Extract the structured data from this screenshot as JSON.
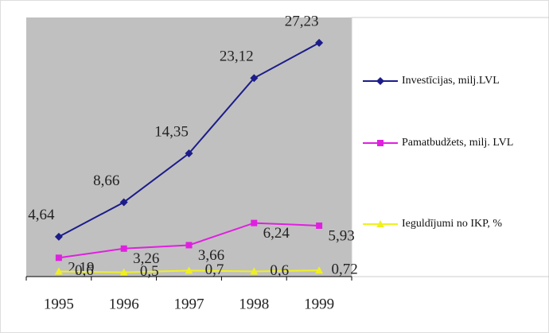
{
  "chart_data": {
    "type": "line",
    "categories": [
      "1995",
      "1996",
      "1997",
      "1998",
      "1999"
    ],
    "series": [
      {
        "name": "Investīcijas, milj.LVL",
        "color": "#1c1c8a",
        "marker": "diamond",
        "values": [
          4.64,
          8.66,
          14.35,
          23.12,
          27.23
        ],
        "value_labels": [
          "4,64",
          "8,66",
          "14,35",
          "23,12",
          "27,23"
        ]
      },
      {
        "name": "Pamatbudžets, milj. LVL",
        "color": "#e020e0",
        "marker": "square",
        "values": [
          2.19,
          3.26,
          3.66,
          6.24,
          5.93
        ],
        "value_labels": [
          "2,19",
          "3,26",
          "3,66",
          "6,24",
          "5,93"
        ]
      },
      {
        "name": "Ieguldījumi no IKP, %",
        "color": "#f0f020",
        "marker": "triangle",
        "values": [
          0.6,
          0.5,
          0.7,
          0.6,
          0.72
        ],
        "value_labels": [
          "0,6",
          "0,5",
          "0,7",
          "0,6",
          "0,72"
        ]
      }
    ],
    "ylim": [
      0,
      30
    ],
    "legend": "right"
  }
}
